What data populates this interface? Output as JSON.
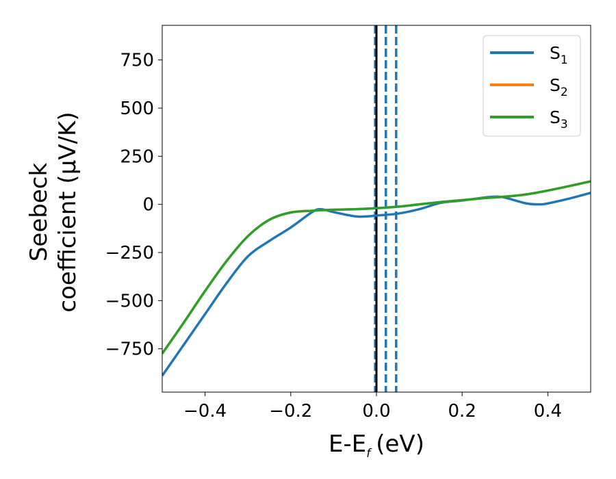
{
  "chart_data": {
    "type": "line",
    "xlabel": "E-E",
    "xlabel_subscript": "f",
    "xlabel_unit": "(eV)",
    "ylabel_line1": "Seebeck",
    "ylabel_line2": "coefficient  (μV/K)",
    "xlim": [
      -0.5,
      0.5
    ],
    "ylim": [
      -975,
      930
    ],
    "xticks": [
      -0.4,
      -0.2,
      0.0,
      0.2,
      0.4
    ],
    "xtick_labels": [
      "−0.4",
      "−0.2",
      "0.0",
      "0.2",
      "0.4"
    ],
    "yticks": [
      -750,
      -500,
      -250,
      0,
      250,
      500,
      750
    ],
    "ytick_labels": [
      "−750",
      "−500",
      "−250",
      "0",
      "250",
      "500",
      "750"
    ],
    "grid": false,
    "legend_position": "top-right",
    "series": [
      {
        "name": "S",
        "name_subscript": "1",
        "color": "#1f77b4",
        "x": [
          -0.5,
          -0.45,
          -0.4,
          -0.35,
          -0.3,
          -0.25,
          -0.2,
          -0.15,
          -0.13,
          -0.1,
          -0.05,
          -0.02,
          0.0,
          0.05,
          0.1,
          0.15,
          0.2,
          0.25,
          0.28,
          0.3,
          0.35,
          0.38,
          0.4,
          0.45,
          0.5
        ],
        "y": [
          -890,
          -730,
          -570,
          -410,
          -270,
          -190,
          -120,
          -40,
          -25,
          -40,
          -62,
          -62,
          -58,
          -48,
          -25,
          8,
          20,
          35,
          40,
          35,
          5,
          0,
          5,
          30,
          60
        ]
      },
      {
        "name": "S",
        "name_subscript": "2",
        "color": "#ff7f0e",
        "x": [
          -0.5,
          -0.45,
          -0.4,
          -0.35,
          -0.3,
          -0.25,
          -0.2,
          -0.15,
          -0.1,
          -0.05,
          0.0,
          0.05,
          0.1,
          0.15,
          0.2,
          0.25,
          0.3,
          0.35,
          0.4,
          0.45,
          0.5
        ],
        "y": [
          -775,
          -615,
          -450,
          -295,
          -165,
          -80,
          -42,
          -33,
          -28,
          -25,
          -20,
          -12,
          0,
          12,
          22,
          32,
          40,
          52,
          72,
          95,
          120
        ]
      },
      {
        "name": "S",
        "name_subscript": "3",
        "color": "#2ca02c",
        "x": [
          -0.5,
          -0.45,
          -0.4,
          -0.35,
          -0.3,
          -0.25,
          -0.2,
          -0.15,
          -0.1,
          -0.05,
          0.0,
          0.05,
          0.1,
          0.15,
          0.2,
          0.25,
          0.3,
          0.35,
          0.4,
          0.45,
          0.5
        ],
        "y": [
          -775,
          -615,
          -450,
          -295,
          -165,
          -80,
          -42,
          -33,
          -28,
          -25,
          -20,
          -12,
          0,
          12,
          22,
          32,
          40,
          52,
          72,
          95,
          120
        ]
      }
    ],
    "vertical_lines": [
      {
        "x": 0.0,
        "color": "#000000",
        "style": "solid"
      },
      {
        "x": -0.003,
        "color": "#1f77b4",
        "style": "dashed"
      },
      {
        "x": 0.022,
        "color": "#1f77b4",
        "style": "dashed"
      },
      {
        "x": 0.046,
        "color": "#1f77b4",
        "style": "dashed"
      }
    ]
  }
}
